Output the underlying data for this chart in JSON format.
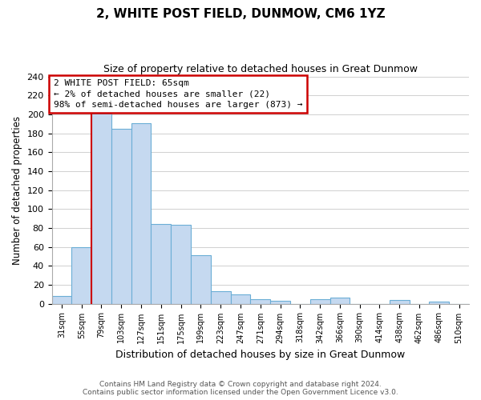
{
  "title": "2, WHITE POST FIELD, DUNMOW, CM6 1YZ",
  "subtitle": "Size of property relative to detached houses in Great Dunmow",
  "xlabel": "Distribution of detached houses by size in Great Dunmow",
  "ylabel": "Number of detached properties",
  "bin_labels": [
    "31sqm",
    "55sqm",
    "79sqm",
    "103sqm",
    "127sqm",
    "151sqm",
    "175sqm",
    "199sqm",
    "223sqm",
    "247sqm",
    "271sqm",
    "294sqm",
    "318sqm",
    "342sqm",
    "366sqm",
    "390sqm",
    "414sqm",
    "438sqm",
    "462sqm",
    "486sqm",
    "510sqm"
  ],
  "bar_values": [
    8,
    60,
    201,
    185,
    191,
    84,
    83,
    51,
    13,
    10,
    5,
    3,
    0,
    5,
    6,
    0,
    0,
    4,
    0,
    2,
    0
  ],
  "bar_color": "#c5d9f0",
  "bar_edge_color": "#6baed6",
  "ylim": [
    0,
    240
  ],
  "yticks": [
    0,
    20,
    40,
    60,
    80,
    100,
    120,
    140,
    160,
    180,
    200,
    220,
    240
  ],
  "property_bin_index": 1,
  "annotation_line_color": "#cc0000",
  "annotation_box_text": "2 WHITE POST FIELD: 65sqm\n← 2% of detached houses are smaller (22)\n98% of semi-detached houses are larger (873) →",
  "annotation_box_edge_color": "#cc0000",
  "footer_line1": "Contains HM Land Registry data © Crown copyright and database right 2024.",
  "footer_line2": "Contains public sector information licensed under the Open Government Licence v3.0.",
  "background_color": "#ffffff",
  "grid_color": "#d0d0d0"
}
